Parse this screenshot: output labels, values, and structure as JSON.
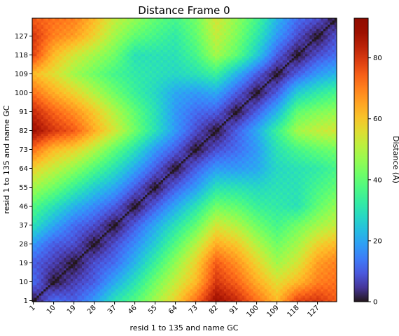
{
  "chart_data": {
    "type": "heatmap",
    "title": "Distance Frame 0",
    "xlabel": "resid 1 to 135 and name GC",
    "ylabel": "resid 1 to 135 and name GC",
    "n_residues": 135,
    "tick_labels": [
      "1",
      "10",
      "19",
      "28",
      "37",
      "46",
      "55",
      "64",
      "73",
      "82",
      "91",
      "100",
      "109",
      "118",
      "127"
    ],
    "colorbar": {
      "label": "Distance (Å)",
      "min": 0,
      "max": 93,
      "ticks": [
        0,
        20,
        40,
        60,
        80
      ],
      "colormap": "turbo"
    },
    "grid": false,
    "diagonal_value": 0,
    "approx_distance_grid": {
      "note_axis_residues": [
        1,
        10,
        19,
        28,
        37,
        46,
        55,
        64,
        73,
        82,
        91,
        100,
        109,
        118,
        127,
        135
      ],
      "values": [
        [
          0,
          12,
          10,
          18,
          30,
          38,
          48,
          58,
          72,
          88,
          82,
          72,
          62,
          78,
          80,
          75
        ],
        [
          12,
          0,
          6,
          10,
          20,
          30,
          42,
          52,
          62,
          80,
          74,
          64,
          56,
          62,
          70,
          72
        ],
        [
          10,
          6,
          0,
          8,
          12,
          22,
          34,
          46,
          58,
          75,
          68,
          58,
          48,
          54,
          66,
          70
        ],
        [
          18,
          10,
          8,
          0,
          8,
          16,
          26,
          38,
          50,
          64,
          60,
          50,
          42,
          48,
          58,
          62
        ],
        [
          30,
          20,
          12,
          8,
          0,
          10,
          20,
          30,
          40,
          54,
          50,
          42,
          36,
          42,
          48,
          52
        ],
        [
          38,
          30,
          22,
          16,
          10,
          0,
          10,
          20,
          30,
          42,
          40,
          34,
          32,
          30,
          40,
          46
        ],
        [
          48,
          42,
          34,
          26,
          20,
          10,
          0,
          10,
          18,
          30,
          30,
          28,
          30,
          30,
          36,
          40
        ],
        [
          58,
          52,
          46,
          38,
          30,
          20,
          10,
          0,
          10,
          18,
          18,
          20,
          28,
          30,
          32,
          36
        ],
        [
          72,
          62,
          58,
          50,
          40,
          30,
          18,
          10,
          0,
          8,
          12,
          18,
          30,
          36,
          40,
          42
        ],
        [
          88,
          80,
          75,
          64,
          54,
          42,
          30,
          18,
          8,
          0,
          10,
          20,
          34,
          48,
          52,
          54
        ],
        [
          82,
          74,
          68,
          60,
          50,
          40,
          30,
          18,
          12,
          10,
          0,
          10,
          22,
          40,
          44,
          46
        ],
        [
          72,
          64,
          58,
          50,
          42,
          34,
          28,
          20,
          18,
          20,
          10,
          0,
          10,
          26,
          32,
          36
        ],
        [
          62,
          56,
          48,
          42,
          36,
          32,
          30,
          28,
          30,
          34,
          22,
          10,
          0,
          10,
          18,
          22
        ],
        [
          78,
          62,
          54,
          48,
          42,
          30,
          30,
          30,
          36,
          48,
          40,
          26,
          10,
          0,
          8,
          12
        ],
        [
          80,
          70,
          66,
          58,
          48,
          40,
          36,
          32,
          40,
          52,
          44,
          32,
          18,
          8,
          0,
          8
        ],
        [
          75,
          72,
          70,
          62,
          52,
          46,
          40,
          36,
          42,
          54,
          46,
          36,
          22,
          12,
          8,
          0
        ]
      ]
    }
  }
}
